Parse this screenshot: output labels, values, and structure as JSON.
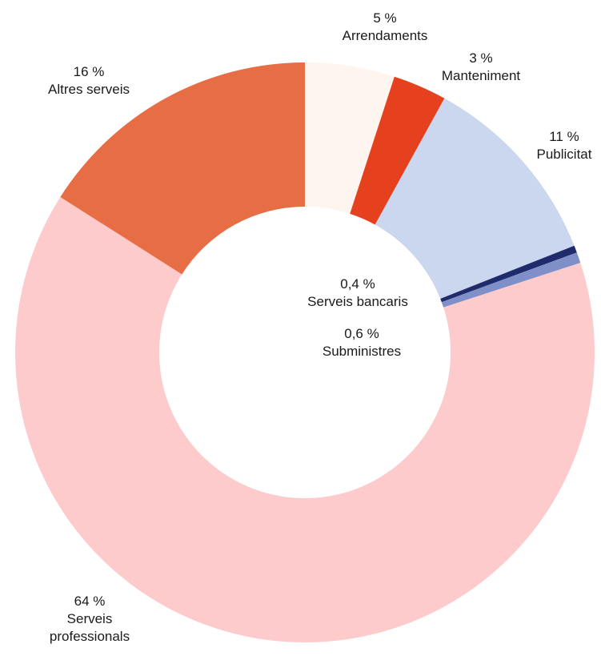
{
  "chart_data": {
    "type": "donut",
    "title": "",
    "slices": [
      {
        "label": "Arrendaments",
        "value": 5,
        "display": "5 %",
        "color": "#fff5ef"
      },
      {
        "label": "Manteniment",
        "value": 3,
        "display": "3 %",
        "color": "#e5411f"
      },
      {
        "label": "Publicitat",
        "value": 11,
        "display": "11 %",
        "color": "#cbd6ef"
      },
      {
        "label": "Serveis bancaris",
        "value": 0.4,
        "display": "0,4 %",
        "color": "#1f2b6b"
      },
      {
        "label": "Subministres",
        "value": 0.6,
        "display": "0,6 %",
        "color": "#7f8fc8"
      },
      {
        "label": "Serveis professionals",
        "value": 64,
        "display": "64 %",
        "color": "#fdcbcb"
      },
      {
        "label": "Altres serveis",
        "value": 16,
        "display": "16 %",
        "color": "#e76d45"
      }
    ]
  },
  "labels": {
    "arrendaments": {
      "pct": "5 %",
      "name": "Arrendaments"
    },
    "manteniment": {
      "pct": "3 %",
      "name": "Manteniment"
    },
    "publicitat": {
      "pct": "11 %",
      "name": "Publicitat"
    },
    "bancaris": {
      "pct": "0,4 %",
      "name": "Serveis bancaris"
    },
    "subministres": {
      "pct": "0,6 %",
      "name": "Subministres"
    },
    "professionals": {
      "pct": "64 %",
      "name1": "Serveis",
      "name2": "professionals"
    },
    "altres": {
      "pct": "16 %",
      "name": "Altres serveis"
    }
  }
}
